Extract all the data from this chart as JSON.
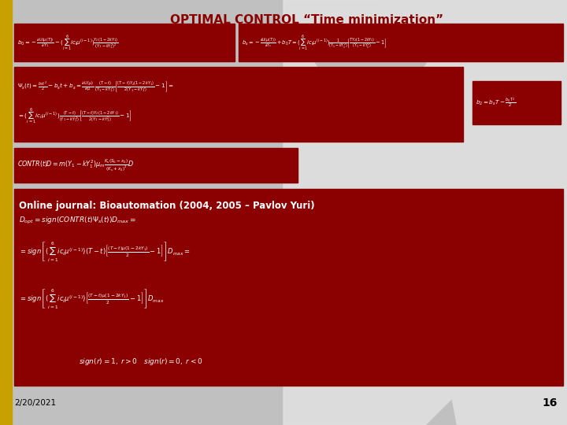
{
  "title": "OPTIMAL CONTROL “Time minimization”",
  "title_color": "#8B0000",
  "bg_color": "#C0C0C0",
  "dark_red": "#8B0000",
  "gold": "#C8A000",
  "footer_date": "2/20/2021",
  "footer_page": "16",
  "online_journal": "Online journal: Bioautomation (2004, 2005 – Pavlov Yuri)"
}
